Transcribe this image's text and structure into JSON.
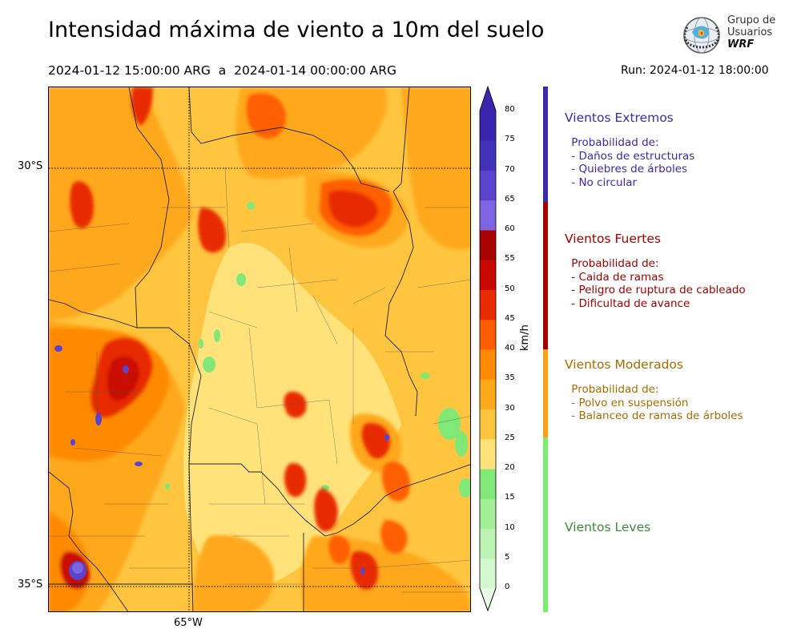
{
  "header": {
    "title": "Intensidad máxima de viento a 10m del suelo",
    "period": "2024-01-12 15:00:00 ARG  a  2024-01-14 00:00:00 ARG",
    "run": "Run: 2024-01-12 18:00:00"
  },
  "logo": {
    "line1": "Grupo de",
    "line2": "Usuarios",
    "line3": "WRF"
  },
  "map": {
    "lat_labels": [
      "30°S",
      "35°S"
    ],
    "lon_labels": [
      "65°W"
    ]
  },
  "colorbar": {
    "unit": "km/h",
    "ticks": [
      "0",
      "5",
      "10",
      "15",
      "20",
      "25",
      "30",
      "35",
      "40",
      "45",
      "50",
      "55",
      "60",
      "65",
      "70",
      "75",
      "80"
    ],
    "colors": [
      "#eafde6",
      "#d3f8cf",
      "#bdf4b3",
      "#a2ef98",
      "#80e876",
      "#ffe37a",
      "#ffc53f",
      "#ffa81a",
      "#ff8a05",
      "#ff5e00",
      "#e82b00",
      "#c90900",
      "#a60000",
      "#7d64e0",
      "#5a44ce",
      "#4130b8",
      "#3a26ac"
    ]
  },
  "categories": [
    {
      "title": "Vientos Extremos",
      "color": "#3b2ab0",
      "desc": " Probabilidad de:\n - Daños de estructuras\n - Quiebres de árboles\n - No circular"
    },
    {
      "title": "Vientos Fuertes",
      "color": "#a30000",
      "desc": " Probabilidad de:\n - Caida de ramas\n - Peligro de ruptura de cableado\n - Dificultad de avance"
    },
    {
      "title": "Vientos Moderados",
      "color": "#a86c00",
      "bar_color": "#ff9f12",
      "desc": " Probabilidad de:\n - Polvo en suspensión\n - Balanceo de ramas de árboles"
    },
    {
      "title": "Vientos Leves",
      "color": "#3c8a3a",
      "bar_color": "#7aee6e",
      "desc": ""
    }
  ]
}
